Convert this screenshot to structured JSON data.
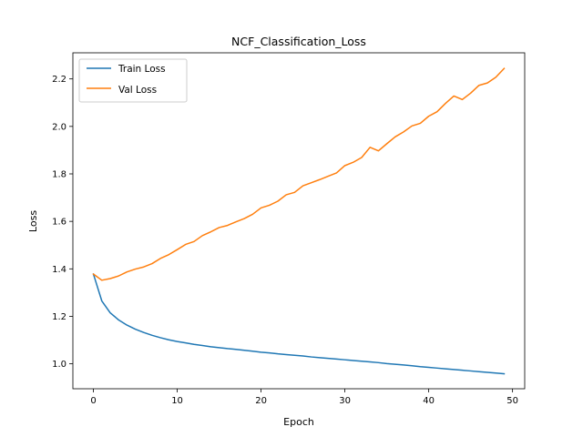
{
  "chart_data": {
    "type": "line",
    "title": "NCF_Classification_Loss",
    "xlabel": "Epoch",
    "ylabel": "Loss",
    "xlim": [
      -2.45,
      51.45
    ],
    "ylim": [
      0.895,
      2.31
    ],
    "xticks": [
      0,
      10,
      20,
      30,
      40,
      50
    ],
    "yticks": [
      1.0,
      1.2,
      1.4,
      1.6,
      1.8,
      2.0,
      2.2
    ],
    "ytick_labels": [
      "1.0",
      "1.2",
      "1.4",
      "1.6",
      "1.8",
      "2.0",
      "2.2"
    ],
    "grid": false,
    "legend_position": "upper-left",
    "x": [
      0,
      1,
      2,
      3,
      4,
      5,
      6,
      7,
      8,
      9,
      10,
      11,
      12,
      13,
      14,
      15,
      16,
      17,
      18,
      19,
      20,
      21,
      22,
      23,
      24,
      25,
      26,
      27,
      28,
      29,
      30,
      31,
      32,
      33,
      34,
      35,
      36,
      37,
      38,
      39,
      40,
      41,
      42,
      43,
      44,
      45,
      46,
      47,
      48,
      49
    ],
    "series": [
      {
        "name": "Train Loss",
        "color": "#1f77b4",
        "values": [
          1.378,
          1.265,
          1.215,
          1.185,
          1.163,
          1.146,
          1.132,
          1.12,
          1.11,
          1.101,
          1.094,
          1.088,
          1.082,
          1.077,
          1.072,
          1.068,
          1.064,
          1.061,
          1.057,
          1.053,
          1.049,
          1.046,
          1.042,
          1.039,
          1.036,
          1.033,
          1.029,
          1.026,
          1.023,
          1.02,
          1.017,
          1.014,
          1.011,
          1.008,
          1.005,
          1.001,
          0.998,
          0.995,
          0.992,
          0.988,
          0.985,
          0.982,
          0.979,
          0.976,
          0.973,
          0.97,
          0.967,
          0.964,
          0.961,
          0.958
        ]
      },
      {
        "name": "Val Loss",
        "color": "#ff7f0e",
        "values": [
          1.378,
          1.352,
          1.359,
          1.37,
          1.387,
          1.399,
          1.408,
          1.422,
          1.444,
          1.46,
          1.481,
          1.503,
          1.515,
          1.54,
          1.556,
          1.574,
          1.583,
          1.598,
          1.612,
          1.63,
          1.657,
          1.668,
          1.685,
          1.712,
          1.722,
          1.75,
          1.763,
          1.776,
          1.79,
          1.804,
          1.835,
          1.849,
          1.869,
          1.912,
          1.897,
          1.927,
          1.956,
          1.977,
          2.002,
          2.013,
          2.043,
          2.062,
          2.097,
          2.128,
          2.113,
          2.14,
          2.173,
          2.183,
          2.207,
          2.244
        ]
      }
    ]
  }
}
